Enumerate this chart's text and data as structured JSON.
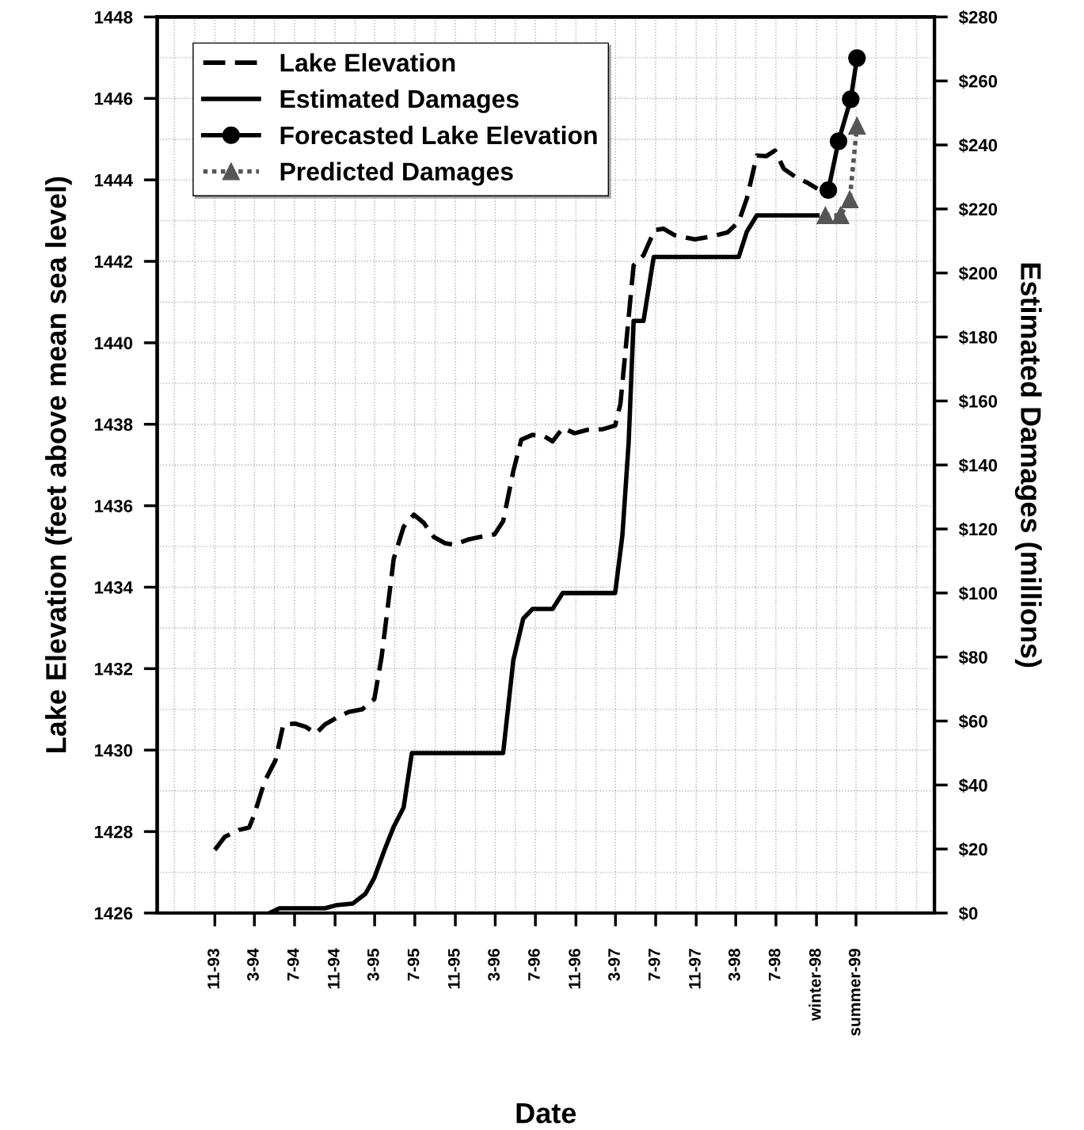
{
  "chart_data": {
    "type": "line",
    "xlabel": "Date",
    "ylabel": "Lake Elevation (feet above mean sea level)",
    "y2label": "Estimated Damages (millions)",
    "xlim": [
      "1993-05-10",
      "1999-10-25"
    ],
    "xticks": [
      {
        "value": "1993-07",
        "label": null
      },
      {
        "value": "1993-09",
        "label": null
      },
      {
        "value": "1993-11",
        "label": "11-93"
      },
      {
        "value": "1994-01",
        "label": null
      },
      {
        "value": "1994-03",
        "label": "3-94"
      },
      {
        "value": "1994-05",
        "label": null
      },
      {
        "value": "1994-07",
        "label": "7-94"
      },
      {
        "value": "1994-09",
        "label": null
      },
      {
        "value": "1994-11",
        "label": "11-94"
      },
      {
        "value": "1995-01",
        "label": null
      },
      {
        "value": "1995-03",
        "label": "3-95"
      },
      {
        "value": "1995-05",
        "label": null
      },
      {
        "value": "1995-07",
        "label": "7-95"
      },
      {
        "value": "1995-09",
        "label": null
      },
      {
        "value": "1995-11",
        "label": "11-95"
      },
      {
        "value": "1996-01",
        "label": null
      },
      {
        "value": "1996-03",
        "label": "3-96"
      },
      {
        "value": "1996-05",
        "label": null
      },
      {
        "value": "1996-07",
        "label": "7-96"
      },
      {
        "value": "1996-09",
        "label": null
      },
      {
        "value": "1996-11",
        "label": "11-96"
      },
      {
        "value": "1997-01",
        "label": null
      },
      {
        "value": "1997-03",
        "label": "3-97"
      },
      {
        "value": "1997-05",
        "label": null
      },
      {
        "value": "1997-07",
        "label": "7-97"
      },
      {
        "value": "1997-09",
        "label": null
      },
      {
        "value": "1997-11",
        "label": "11-97"
      },
      {
        "value": "1998-01",
        "label": null
      },
      {
        "value": "1998-03",
        "label": "3-98"
      },
      {
        "value": "1998-05",
        "label": null
      },
      {
        "value": "1998-07",
        "label": "7-98"
      },
      {
        "value": "1998-09",
        "label": null
      },
      {
        "value": "1998-11",
        "label": "winter-98"
      },
      {
        "value": "1999-01",
        "label": null
      },
      {
        "value": "1999-03",
        "label": "summer-99"
      },
      {
        "value": "1999-05",
        "label": null
      },
      {
        "value": "1999-07",
        "label": null
      },
      {
        "value": "1999-09",
        "label": null
      }
    ],
    "ylim": [
      1426,
      1448
    ],
    "yticks": [
      1426,
      {
        "value": 1427,
        "label": null
      },
      1428,
      {
        "value": 1429,
        "label": null
      },
      1430,
      {
        "value": 1431,
        "label": null
      },
      1432,
      {
        "value": 1433,
        "label": null
      },
      1434,
      {
        "value": 1435,
        "label": null
      },
      1436,
      {
        "value": 1437,
        "label": null
      },
      1438,
      {
        "value": 1439,
        "label": null
      },
      1440,
      {
        "value": 1441,
        "label": null
      },
      1442,
      {
        "value": 1443,
        "label": null
      },
      1444,
      {
        "value": 1445,
        "label": null
      },
      1446,
      {
        "value": 1447,
        "label": null
      },
      1448
    ],
    "y2lim": [
      0,
      280
    ],
    "y2ticks": [
      {
        "value": 0,
        "label": "$0"
      },
      {
        "value": 20,
        "label": "$20"
      },
      {
        "value": 40,
        "label": "$40"
      },
      {
        "value": 60,
        "label": "$60"
      },
      {
        "value": 80,
        "label": "$80"
      },
      {
        "value": 100,
        "label": "$100"
      },
      {
        "value": 120,
        "label": "$120"
      },
      {
        "value": 140,
        "label": "$140"
      },
      {
        "value": 160,
        "label": "$160"
      },
      {
        "value": 180,
        "label": "$180"
      },
      {
        "value": 200,
        "label": "$200"
      },
      {
        "value": 220,
        "label": "$220"
      },
      {
        "value": 240,
        "label": "$240"
      },
      {
        "value": 260,
        "label": "$260"
      },
      {
        "value": 280,
        "label": "$280"
      }
    ],
    "grid": true,
    "legend": "top left",
    "series": [
      {
        "name": "Lake Elevation",
        "color": "#000000",
        "line_style": "dashed",
        "marker": "none",
        "x": [
          "1993-11-01",
          "1993-12-01",
          "1994-01-13",
          "1994-02-13",
          "1994-02-28",
          "1994-04-01",
          "1994-05-04",
          "1994-05-28",
          "1994-07-04",
          "1994-08-04",
          "1994-09-04",
          "1994-10-01",
          "1994-11-07",
          "1994-12-13",
          "1995-01-22",
          "1995-02-28",
          "1995-03-22",
          "1995-04-28",
          "1995-05-28",
          "1995-06-28",
          "1995-07-28",
          "1995-08-28",
          "1995-10-01",
          "1995-10-28",
          "1995-12-10",
          "1996-01-25",
          "1996-02-28",
          "1996-03-25",
          "1996-04-25",
          "1996-05-19",
          "1996-06-22",
          "1996-07-25",
          "1996-08-22",
          "1996-09-22",
          "1996-10-28",
          "1996-12-04",
          "1997-01-22",
          "1997-02-28",
          "1997-03-16",
          "1997-04-25",
          "1997-05-25",
          "1997-06-28",
          "1997-07-25",
          "1997-08-28",
          "1997-10-28",
          "1997-12-22",
          "1998-02-04",
          "1998-03-10",
          "1998-04-04",
          "1998-05-04",
          "1998-06-01",
          "1998-06-28",
          "1998-07-25",
          "1998-09-01",
          "1998-10-07",
          "1998-11-04"
        ],
        "values": [
          1427.55,
          1427.87,
          1428.04,
          1428.1,
          1428.4,
          1429.23,
          1429.75,
          1430.63,
          1430.65,
          1430.57,
          1430.41,
          1430.63,
          1430.8,
          1430.94,
          1431.0,
          1431.25,
          1432.28,
          1434.7,
          1435.48,
          1435.78,
          1435.58,
          1435.23,
          1435.08,
          1435.04,
          1435.17,
          1435.25,
          1435.3,
          1435.62,
          1436.85,
          1437.62,
          1437.74,
          1437.72,
          1437.58,
          1437.91,
          1437.78,
          1437.86,
          1437.88,
          1437.97,
          1438.5,
          1441.9,
          1442.15,
          1442.77,
          1442.8,
          1442.64,
          1442.54,
          1442.62,
          1442.71,
          1442.97,
          1443.55,
          1444.6,
          1444.58,
          1444.72,
          1444.27,
          1444.06,
          1443.92,
          1443.78
        ]
      },
      {
        "name": "Estimated Damages",
        "color": "#000000",
        "line_style": "solid",
        "marker": "none",
        "axis": "y2",
        "x": [
          "1994-04-16",
          "1994-05-16",
          "1994-10-01",
          "1994-11-07",
          "1994-12-25",
          "1995-02-01",
          "1995-02-28",
          "1995-04-01",
          "1995-04-28",
          "1995-05-28",
          "1995-06-22",
          "1996-02-28",
          "1996-03-25",
          "1996-04-25",
          "1996-05-25",
          "1996-06-22",
          "1996-08-22",
          "1996-09-22",
          "1997-02-28",
          "1997-03-22",
          "1997-04-10",
          "1997-04-25",
          "1997-05-25",
          "1997-06-25",
          "1998-03-10",
          "1998-04-04",
          "1998-05-04",
          "1998-11-04"
        ],
        "values": [
          0,
          1.5,
          1.5,
          2.5,
          3,
          6,
          11,
          20,
          27,
          33,
          50,
          50,
          50,
          79,
          92,
          95,
          95,
          100,
          100,
          118,
          147,
          185,
          185,
          205,
          205,
          213,
          218,
          218
        ]
      },
      {
        "name": "Forecasted Lake Elevation",
        "color": "#000000",
        "line_style": "solid",
        "marker": "circle",
        "x": [
          "1998-12-07",
          "1999-01-07",
          "1999-02-13",
          "1999-03-04"
        ],
        "values": [
          1443.75,
          1444.95,
          1445.98,
          1446.99
        ]
      },
      {
        "name": "Predicted Damages",
        "color": "#555555",
        "line_style": "dotted",
        "marker": "triangle",
        "axis": "y2",
        "x": [
          "1998-11-28",
          "1999-01-13",
          "1999-02-10",
          "1999-03-04"
        ],
        "values": [
          218,
          218,
          223,
          246
        ]
      }
    ]
  }
}
